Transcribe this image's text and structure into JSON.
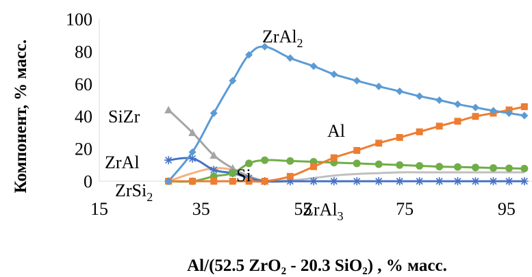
{
  "chart_data": {
    "type": "line",
    "title": "",
    "xlabel": "Al/(52.5 ZrO₂ - 20.3 SiO₂) , % масс.",
    "ylabel": "Компонент, % масс.",
    "xlim": [
      15,
      100
    ],
    "ylim": [
      0,
      100
    ],
    "xticks": [
      "15",
      "35",
      "55",
      "75",
      "95"
    ],
    "xtick_values": [
      15,
      35,
      55,
      75,
      95
    ],
    "yticks": [
      "0",
      "20",
      "40",
      "60",
      "80",
      "100"
    ],
    "ytick_values": [
      0,
      20,
      40,
      60,
      80,
      100
    ],
    "grid": false,
    "legend": "none",
    "series": [
      {
        "name": "ZrAl₂",
        "label_text": "ZrAl₂",
        "color": "#5B9BD5",
        "marker": "diamond",
        "x": [
          28.6,
          33.3,
          37.5,
          41.2,
          44.4,
          47.5,
          52.5,
          57.1,
          61.1,
          65.6,
          69.9,
          74.0,
          77.9,
          81.8,
          85.4,
          88.9,
          92.4,
          95.5,
          98.5
        ],
        "y": [
          0,
          18,
          42,
          62,
          78,
          83,
          76,
          71,
          66,
          62,
          58.5,
          55.5,
          52.5,
          50,
          47.5,
          45.5,
          43.5,
          42,
          40.5
        ]
      },
      {
        "name": "Al",
        "label_text": "Al",
        "color": "#ED7D31",
        "marker": "square",
        "x": [
          28.6,
          33.3,
          37.5,
          41.2,
          44.4,
          47.5,
          52.5,
          57.1,
          61.1,
          65.6,
          69.9,
          74.0,
          77.9,
          81.8,
          85.4,
          88.9,
          92.4,
          95.5,
          98.5
        ],
        "y": [
          0,
          0,
          0,
          0,
          0,
          0,
          3,
          9,
          14.5,
          19,
          23.5,
          27,
          30.5,
          34,
          37,
          40,
          42,
          44,
          46
        ]
      },
      {
        "name": "Si",
        "label_text": "Si",
        "color": "#70AD47",
        "marker": "circle",
        "x": [
          28.6,
          33.3,
          37.5,
          41.2,
          44.4,
          47.5,
          52.5,
          57.1,
          61.1,
          65.6,
          69.9,
          74.0,
          77.9,
          81.8,
          85.4,
          88.9,
          92.4,
          95.5,
          98.5
        ],
        "y": [
          0,
          0,
          3,
          5,
          11,
          13,
          12.5,
          12,
          11.5,
          11,
          10.5,
          10,
          9.5,
          9,
          8.8,
          8.5,
          8.2,
          8,
          7.8
        ]
      },
      {
        "name": "SiZr",
        "label_text": "SiZr",
        "color": "#A5A5A5",
        "marker": "triangle",
        "x": [
          28.6,
          33.3,
          37.5,
          41.2,
          44.4,
          47.5
        ],
        "y": [
          44,
          30,
          16,
          8,
          3,
          0
        ]
      },
      {
        "name": "ZrAl",
        "label_text": "ZrAl",
        "color": "#4472C4",
        "marker": "star",
        "x": [
          28.6,
          33.3,
          37.5,
          41.2,
          44.4,
          47.5,
          52.5,
          57.1,
          61.1,
          65.6,
          69.9,
          74.0,
          77.9,
          81.8,
          85.4,
          88.9,
          92.4,
          95.5,
          98.5
        ],
        "y": [
          13,
          14,
          7,
          5,
          2,
          0,
          0,
          0,
          0,
          0,
          0,
          0,
          0,
          0,
          0,
          0,
          0,
          0,
          0
        ]
      },
      {
        "name": "ZrSi₂",
        "label_text": "ZrSi₂",
        "color": "#F4B183",
        "marker": "none",
        "x": [
          28.6,
          33.3,
          37.5,
          41.2,
          44.4,
          47.5,
          52.5,
          57.1,
          61.1,
          65.6,
          69.9,
          74.0,
          77.9,
          81.8,
          85.4,
          88.9,
          92.4,
          95.5,
          98.5
        ],
        "y": [
          0,
          5,
          8,
          7,
          3,
          0,
          0,
          0,
          0,
          0,
          0,
          0,
          0,
          0,
          0,
          0,
          0,
          0,
          0
        ]
      },
      {
        "name": "ZrAl₃",
        "label_text": "ZrAl₃",
        "color": "#BFBFBF",
        "marker": "none",
        "x": [
          28.6,
          33.3,
          37.5,
          41.2,
          44.4,
          47.5,
          52.5,
          57.1,
          61.1,
          65.6,
          69.9,
          74.0,
          77.9,
          81.8,
          85.4,
          88.9,
          92.4,
          95.5,
          98.5
        ],
        "y": [
          0,
          0,
          0,
          0,
          0,
          0,
          0.5,
          2,
          3.5,
          4.5,
          5,
          5.5,
          5.5,
          5.5,
          5.5,
          5.5,
          5.5,
          5.5,
          5.5
        ]
      }
    ]
  }
}
